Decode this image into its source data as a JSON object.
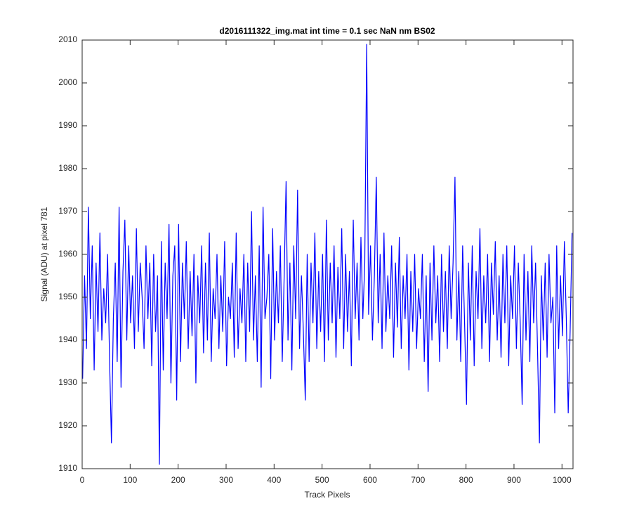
{
  "chart_data": {
    "type": "line",
    "title": "d2016111322_img.mat int time = 0.1 sec  NaN nm BS02",
    "x_label": "Track Pixels",
    "y_label": "Signal (ADU) at pixel 781",
    "xlim": [
      0,
      1023
    ],
    "ylim": [
      1910,
      2010
    ],
    "xticks": [
      0,
      100,
      200,
      300,
      400,
      500,
      600,
      700,
      800,
      900,
      1000
    ],
    "yticks": [
      1910,
      1920,
      1930,
      1940,
      1950,
      1960,
      1970,
      1980,
      1990,
      2000,
      2010
    ],
    "grid": false,
    "x": [
      1,
      5,
      9,
      13,
      17,
      21,
      25,
      29,
      33,
      37,
      41,
      45,
      49,
      53,
      57,
      61,
      65,
      69,
      73,
      77,
      81,
      85,
      89,
      93,
      97,
      101,
      105,
      109,
      113,
      117,
      121,
      125,
      129,
      133,
      137,
      141,
      145,
      149,
      153,
      157,
      161,
      165,
      169,
      173,
      177,
      181,
      185,
      189,
      193,
      197,
      201,
      205,
      209,
      213,
      217,
      221,
      225,
      229,
      233,
      237,
      241,
      245,
      249,
      253,
      257,
      261,
      265,
      269,
      273,
      277,
      281,
      285,
      289,
      293,
      297,
      301,
      305,
      309,
      313,
      317,
      321,
      325,
      329,
      333,
      337,
      341,
      345,
      349,
      353,
      357,
      361,
      365,
      369,
      373,
      377,
      381,
      385,
      389,
      393,
      397,
      401,
      405,
      409,
      413,
      417,
      421,
      425,
      429,
      433,
      437,
      441,
      445,
      449,
      453,
      457,
      461,
      465,
      469,
      473,
      477,
      481,
      485,
      489,
      493,
      497,
      501,
      505,
      509,
      513,
      517,
      521,
      525,
      529,
      533,
      537,
      541,
      545,
      549,
      553,
      557,
      561,
      565,
      569,
      573,
      577,
      581,
      585,
      589,
      593,
      597,
      601,
      605,
      609,
      613,
      617,
      621,
      625,
      629,
      633,
      637,
      641,
      645,
      649,
      653,
      657,
      661,
      665,
      669,
      673,
      677,
      681,
      685,
      689,
      693,
      697,
      701,
      705,
      709,
      713,
      717,
      721,
      725,
      729,
      733,
      737,
      741,
      745,
      749,
      753,
      757,
      761,
      765,
      769,
      773,
      777,
      781,
      785,
      789,
      793,
      797,
      801,
      805,
      809,
      813,
      817,
      821,
      825,
      829,
      833,
      837,
      841,
      845,
      849,
      853,
      857,
      861,
      865,
      869,
      873,
      877,
      881,
      885,
      889,
      893,
      897,
      901,
      905,
      909,
      913,
      917,
      921,
      925,
      929,
      933,
      937,
      941,
      945,
      949,
      953,
      957,
      961,
      965,
      969,
      973,
      977,
      981,
      985,
      989,
      993,
      997,
      1001,
      1005,
      1009,
      1013,
      1017,
      1021
    ],
    "series": [
      {
        "name": "signal",
        "color": "#0000ff",
        "values": [
          1931,
          1955,
          1938,
          1971,
          1945,
          1962,
          1933,
          1958,
          1942,
          1965,
          1940,
          1952,
          1944,
          1960,
          1936,
          1916,
          1945,
          1958,
          1935,
          1971,
          1929,
          1956,
          1968,
          1940,
          1962,
          1944,
          1955,
          1938,
          1966,
          1942,
          1958,
          1950,
          1938,
          1962,
          1945,
          1958,
          1934,
          1960,
          1942,
          1955,
          1911,
          1963,
          1933,
          1958,
          1945,
          1967,
          1930,
          1955,
          1962,
          1926,
          1967,
          1935,
          1958,
          1945,
          1963,
          1938,
          1956,
          1941,
          1960,
          1930,
          1955,
          1944,
          1962,
          1937,
          1958,
          1940,
          1965,
          1935,
          1952,
          1945,
          1960,
          1938,
          1955,
          1942,
          1963,
          1934,
          1950,
          1945,
          1958,
          1936,
          1965,
          1938,
          1952,
          1944,
          1960,
          1935,
          1958,
          1942,
          1970,
          1940,
          1955,
          1935,
          1962,
          1929,
          1971,
          1945,
          1950,
          1960,
          1931,
          1966,
          1940,
          1956,
          1944,
          1962,
          1935,
          1955,
          1977,
          1940,
          1958,
          1933,
          1962,
          1945,
          1975,
          1938,
          1955,
          1942,
          1926,
          1960,
          1935,
          1958,
          1944,
          1965,
          1938,
          1956,
          1942,
          1960,
          1935,
          1968,
          1940,
          1958,
          1944,
          1962,
          1936,
          1957,
          1945,
          1966,
          1938,
          1960,
          1942,
          1956,
          1934,
          1968,
          1945,
          1958,
          1940,
          1964,
          1945,
          1958,
          2009,
          1946,
          1962,
          1940,
          1955,
          1978,
          1944,
          1960,
          1938,
          1965,
          1942,
          1955,
          1945,
          1962,
          1936,
          1958,
          1943,
          1964,
          1938,
          1955,
          1945,
          1960,
          1933,
          1956,
          1942,
          1960,
          1938,
          1952,
          1945,
          1960,
          1935,
          1955,
          1928,
          1958,
          1940,
          1962,
          1944,
          1955,
          1935,
          1960,
          1942,
          1956,
          1938,
          1962,
          1945,
          1958,
          1978,
          1940,
          1956,
          1935,
          1962,
          1944,
          1925,
          1958,
          1940,
          1962,
          1934,
          1956,
          1945,
          1966,
          1938,
          1955,
          1944,
          1960,
          1935,
          1958,
          1946,
          1963,
          1940,
          1955,
          1936,
          1960,
          1944,
          1962,
          1934,
          1955,
          1945,
          1962,
          1938,
          1958,
          1944,
          1925,
          1960,
          1940,
          1956,
          1935,
          1962,
          1944,
          1958,
          1938,
          1916,
          1955,
          1940,
          1958,
          1936,
          1960,
          1944,
          1950,
          1923,
          1962,
          1938,
          1955,
          1941,
          1963,
          1945,
          1923,
          1942,
          1965
        ]
      }
    ]
  }
}
